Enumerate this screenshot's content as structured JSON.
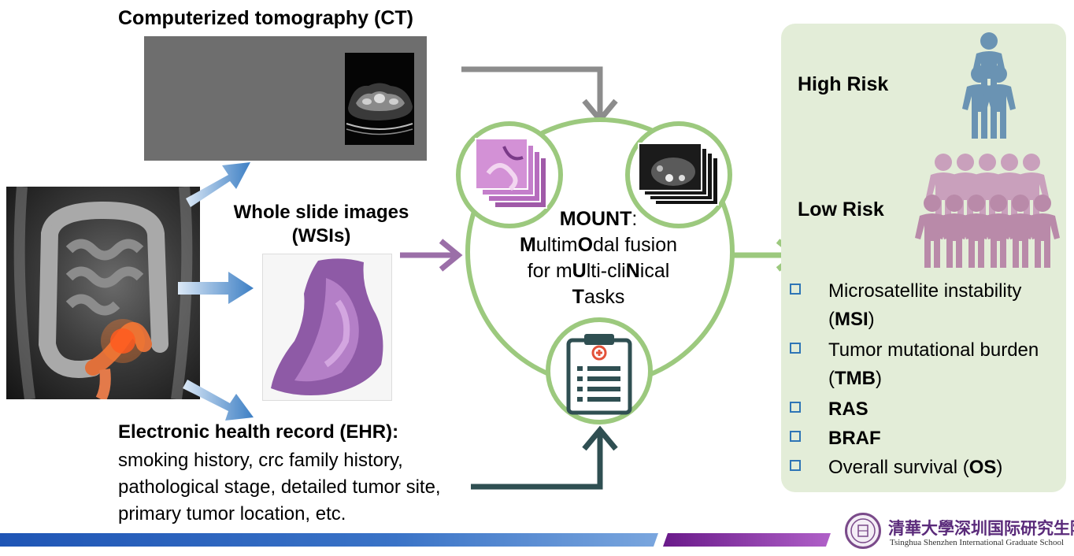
{
  "ct": {
    "title": "Computerized tomography (CT)"
  },
  "wsi": {
    "title": "Whole slide images (WSIs)"
  },
  "ehr": {
    "title": "Electronic health record (EHR):",
    "text": "smoking history, crc family history, pathological stage, detailed tumor site, primary tumor location, etc."
  },
  "mount": {
    "name": "MOUNT",
    "line1_parts": [
      "M",
      "ultim",
      "O",
      "dal fusion"
    ],
    "line2_parts": [
      "for m",
      "U",
      "lti-cli",
      "N",
      "ical"
    ],
    "line3_parts": [
      "T",
      "asks"
    ]
  },
  "risk": {
    "high": "High Risk",
    "low": "Low Risk"
  },
  "tasks": [
    {
      "pre": "Microsatellite instability (",
      "bold": "MSI",
      "post": ")"
    },
    {
      "pre": "Tumor mutational burden (",
      "bold": "TMB",
      "post": ")"
    },
    {
      "pre": "",
      "bold": "RAS",
      "post": ""
    },
    {
      "pre": "",
      "bold": "BRAF",
      "post": ""
    },
    {
      "pre": "Overall survival (",
      "bold": "OS",
      "post": ")"
    }
  ],
  "logo": {
    "cn": "清華大學深圳国际研究生院",
    "en": "Tsinghua Shenzhen International Graduate School"
  },
  "colors": {
    "ct_arrow": "#8c8c8c",
    "wsi_arrow": "#9b6fa8",
    "ehr_arrow": "#2f4f52",
    "circle": "#9cc97e",
    "blue_arrow": "#3d7fc4",
    "high_person": "#6a93b3",
    "low_person": "#b98aa9",
    "checkbox": "#2e75b6"
  }
}
